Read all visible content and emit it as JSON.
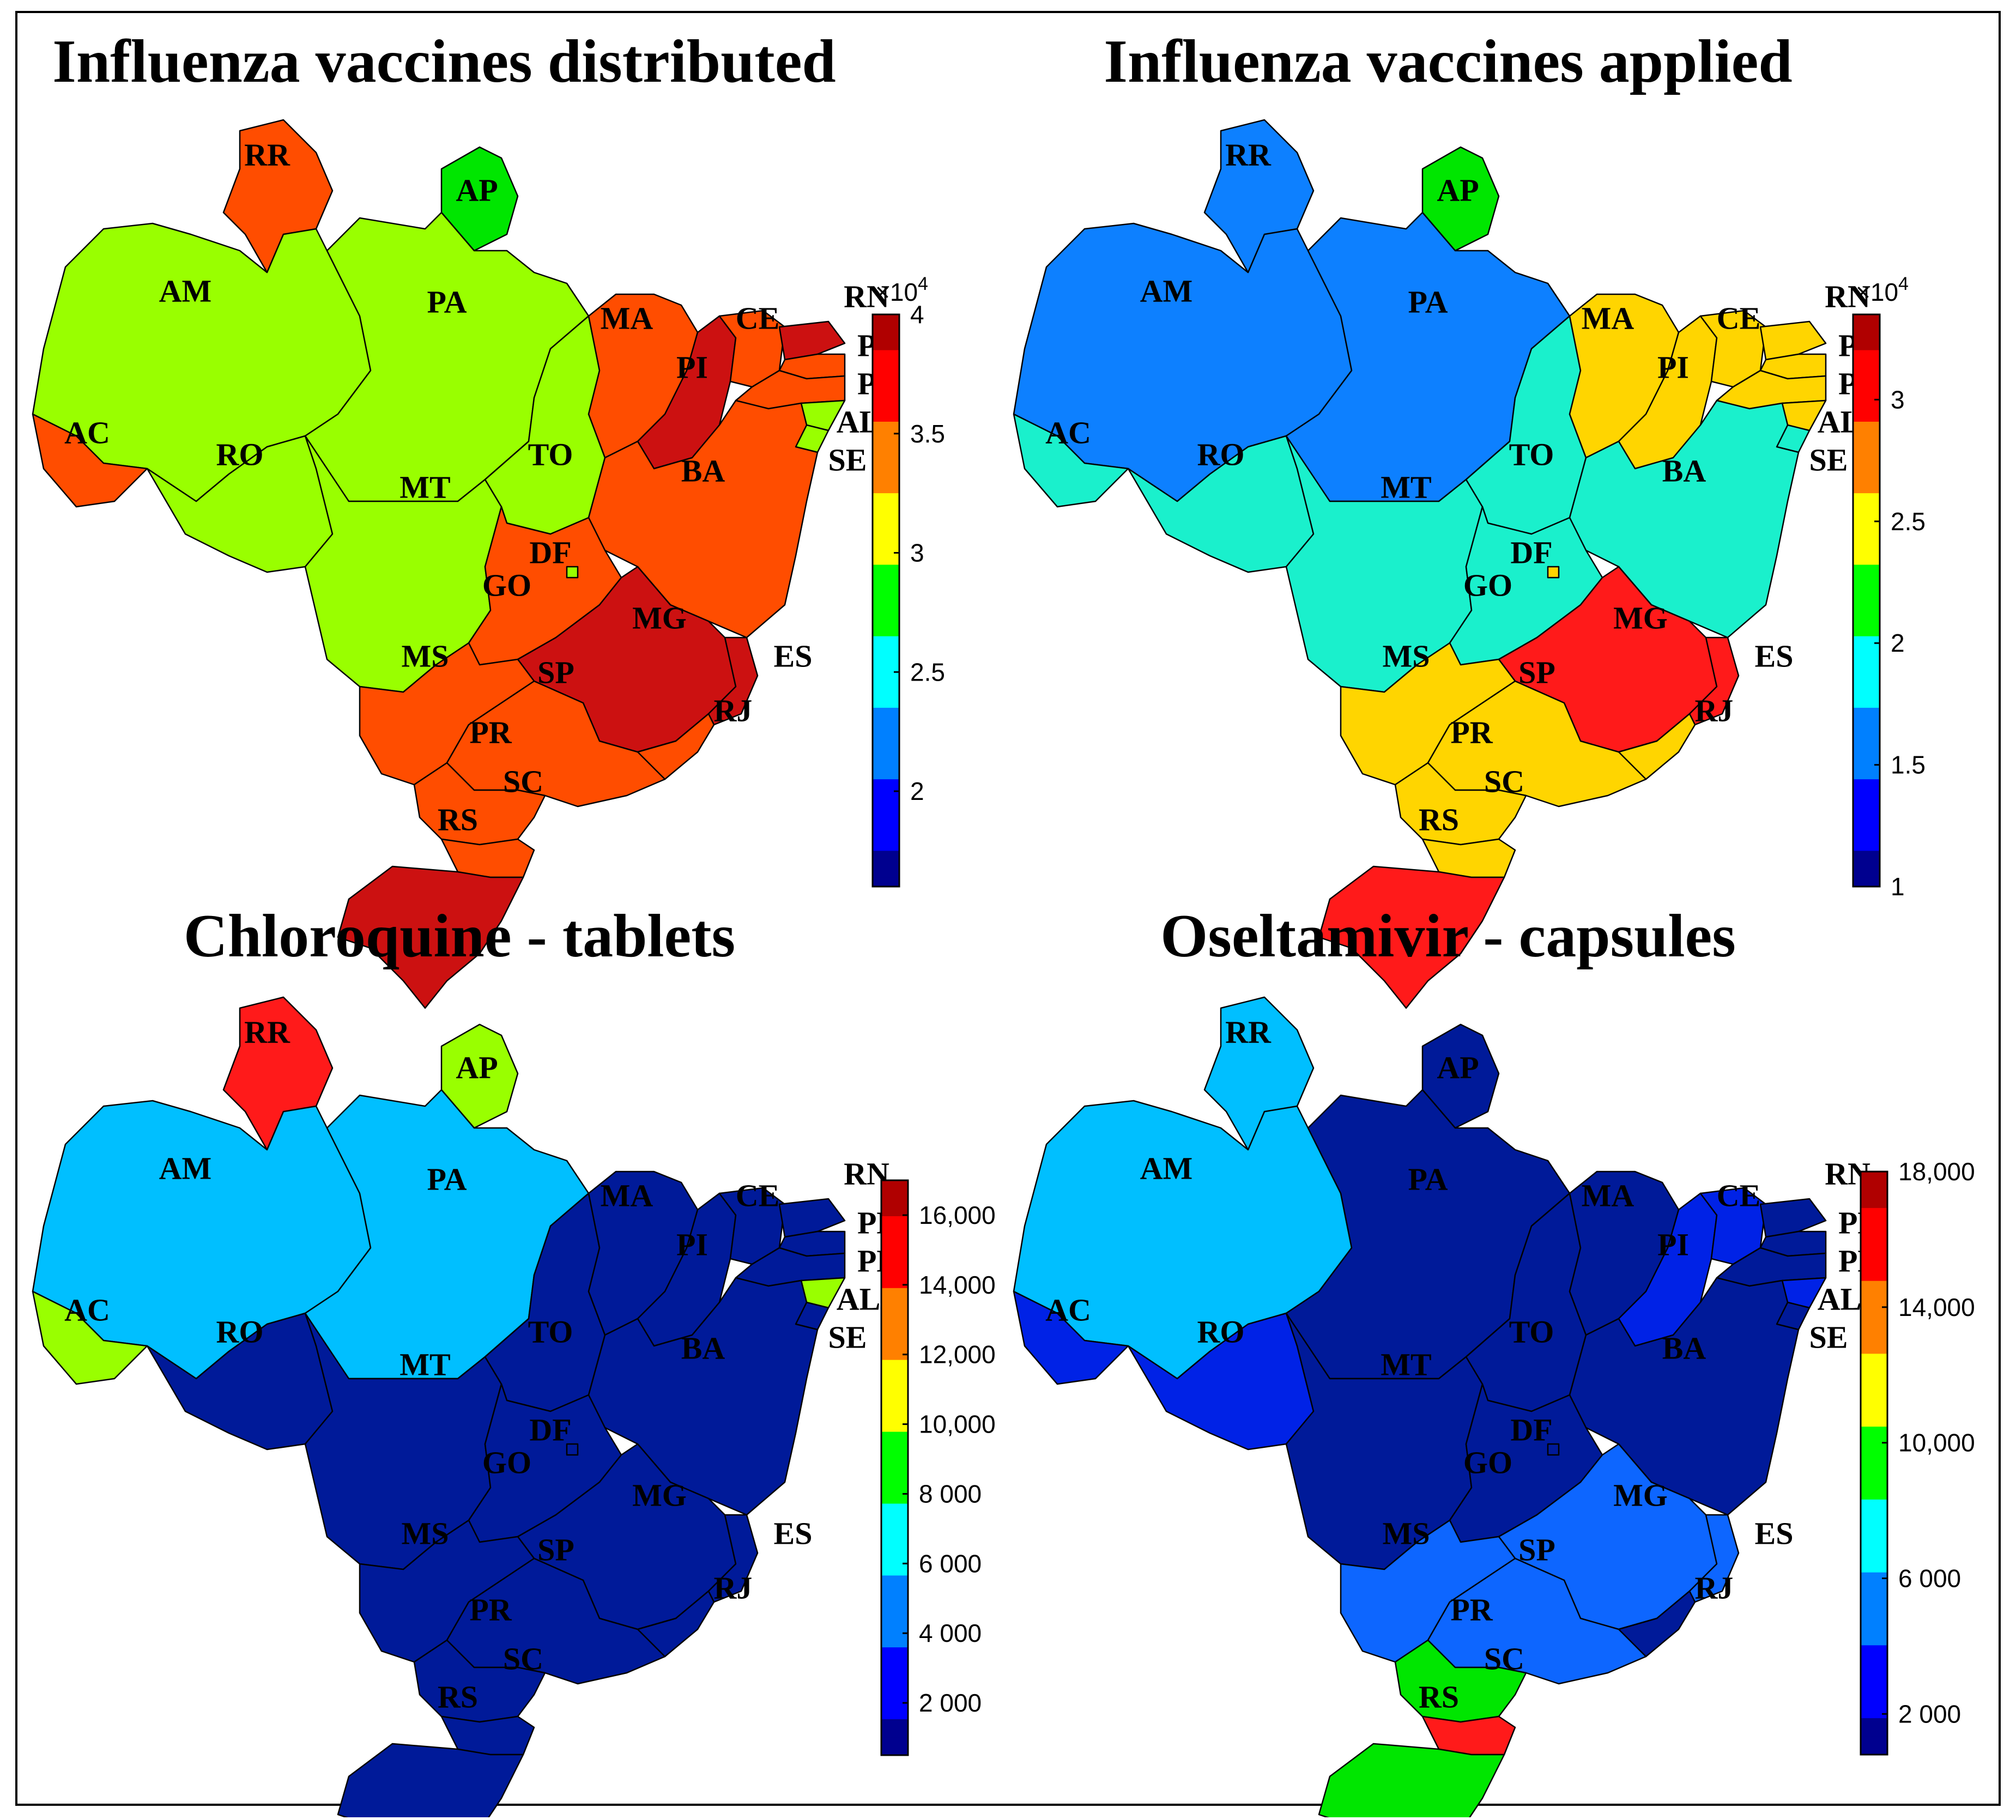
{
  "panels": [
    {
      "title": "Influenza vaccines distributed",
      "colorbar": {
        "exponent_label": "×10",
        "exponent_power": "4",
        "min": 16000,
        "max": 40000,
        "ticks": [
          {
            "v": 20000,
            "label": "2"
          },
          {
            "v": 25000,
            "label": "2.5"
          },
          {
            "v": 30000,
            "label": "3"
          },
          {
            "v": 35000,
            "label": "3.5"
          },
          {
            "v": 40000,
            "label": "4"
          }
        ]
      },
      "fills": {
        "AC": "#ff4d00",
        "AM": "#99ff00",
        "RR": "#ff4d00",
        "AP": "#00e600",
        "PA": "#99ff00",
        "RO": "#99ff00",
        "MT": "#99ff00",
        "TO": "#99ff00",
        "MA": "#ff4d00",
        "PI": "#cc1111",
        "CE": "#ff4d00",
        "RN": "#cc1111",
        "PB": "#ff4d00",
        "PE": "#ff4d00",
        "AL": "#99ff00",
        "SE": "#99ff00",
        "BA": "#ff4d00",
        "GO": "#ff4d00",
        "DF": "#99ff00",
        "MG": "#cc1111",
        "ES": "#cc1111",
        "MS": "#ff4d00",
        "SP": "#ff4d00",
        "RJ": "#ff4d00",
        "PR": "#ff4d00",
        "SC": "#ff4d00",
        "RS": "#cc1111"
      }
    },
    {
      "title": "Influenza vaccines applied",
      "colorbar": {
        "exponent_label": "×10",
        "exponent_power": "4",
        "min": 10000,
        "max": 33500,
        "ticks": [
          {
            "v": 10000,
            "label": "1"
          },
          {
            "v": 15000,
            "label": "1.5"
          },
          {
            "v": 20000,
            "label": "2"
          },
          {
            "v": 25000,
            "label": "2.5"
          },
          {
            "v": 30000,
            "label": "3"
          }
        ]
      },
      "fills": {
        "AC": "#1af0cc",
        "AM": "#0d80ff",
        "RR": "#0d80ff",
        "AP": "#00e600",
        "PA": "#0d80ff",
        "RO": "#1af0cc",
        "MT": "#1af0cc",
        "TO": "#1af0cc",
        "MA": "#ffd500",
        "PI": "#ffd500",
        "CE": "#ffd500",
        "RN": "#ffd500",
        "PB": "#ffd500",
        "PE": "#ffd500",
        "AL": "#ffd500",
        "SE": "#1af0cc",
        "BA": "#1af0cc",
        "GO": "#1af0cc",
        "DF": "#ffd500",
        "MG": "#ff1a1a",
        "ES": "#ff1a1a",
        "MS": "#ffd500",
        "SP": "#ffd500",
        "RJ": "#ffd500",
        "PR": "#ffd500",
        "SC": "#ffd500",
        "RS": "#ff1a1a"
      }
    },
    {
      "title": "Chloroquine - tablets",
      "colorbar": {
        "exponent_label": "",
        "exponent_power": "",
        "min": 500,
        "max": 17000,
        "ticks": [
          {
            "v": 2000,
            "label": "2 000"
          },
          {
            "v": 4000,
            "label": "4 000"
          },
          {
            "v": 6000,
            "label": "6 000"
          },
          {
            "v": 8000,
            "label": "8 000"
          },
          {
            "v": 10000,
            "label": "10,000"
          },
          {
            "v": 12000,
            "label": "12,000"
          },
          {
            "v": 14000,
            "label": "14,000"
          },
          {
            "v": 16000,
            "label": "16,000"
          }
        ]
      },
      "fills": {
        "AC": "#99ff00",
        "AM": "#00bfff",
        "RR": "#ff1a1a",
        "AP": "#99ff00",
        "PA": "#00bfff",
        "RO": "#001a99",
        "MT": "#001a99",
        "TO": "#001a99",
        "MA": "#001a99",
        "PI": "#001a99",
        "CE": "#001a99",
        "RN": "#001a99",
        "PB": "#001a99",
        "PE": "#001a99",
        "AL": "#99ff00",
        "SE": "#001a99",
        "BA": "#001a99",
        "GO": "#001a99",
        "DF": "#001a99",
        "MG": "#001a99",
        "ES": "#001a99",
        "MS": "#001a99",
        "SP": "#001a99",
        "RJ": "#001a99",
        "PR": "#001a99",
        "SC": "#001a99",
        "RS": "#001a99"
      }
    },
    {
      "title": "Oseltamivir - capsules",
      "colorbar": {
        "exponent_label": "",
        "exponent_power": "",
        "min": 800,
        "max": 18000,
        "ticks": [
          {
            "v": 2000,
            "label": "2 000"
          },
          {
            "v": 6000,
            "label": "6 000"
          },
          {
            "v": 10000,
            "label": "10,000"
          },
          {
            "v": 14000,
            "label": "14,000"
          },
          {
            "v": 18000,
            "label": "18,000"
          }
        ]
      },
      "fills": {
        "AC": "#0022e6",
        "AM": "#00bfff",
        "RR": "#00bfff",
        "AP": "#001a99",
        "PA": "#001a99",
        "RO": "#0022e6",
        "MT": "#001a99",
        "TO": "#001a99",
        "MA": "#001a99",
        "PI": "#0022e6",
        "CE": "#0022e6",
        "RN": "#001a99",
        "PB": "#001a99",
        "PE": "#001a99",
        "AL": "#0022e6",
        "SE": "#001a99",
        "BA": "#001a99",
        "GO": "#001a99",
        "DF": "#001a99",
        "MG": "#0d66ff",
        "ES": "#0d66ff",
        "MS": "#0d66ff",
        "SP": "#0d66ff",
        "RJ": "#001a99",
        "PR": "#00e600",
        "SC": "#ff1a1a",
        "RS": "#00e600"
      }
    }
  ],
  "state_labels": [
    "RR",
    "AP",
    "AM",
    "PA",
    "MA",
    "CE",
    "RN",
    "PB",
    "PE",
    "PI",
    "AL",
    "AC",
    "RO",
    "TO",
    "SE",
    "BA",
    "MT",
    "DF",
    "GO",
    "MG",
    "ES",
    "MS",
    "SP",
    "RJ",
    "PR",
    "SC",
    "RS"
  ],
  "colormap": [
    "#00008f",
    "#0000ff",
    "#0080ff",
    "#00ffff",
    "#00ff00",
    "#ffff00",
    "#ff8000",
    "#ff0000",
    "#b00000"
  ]
}
